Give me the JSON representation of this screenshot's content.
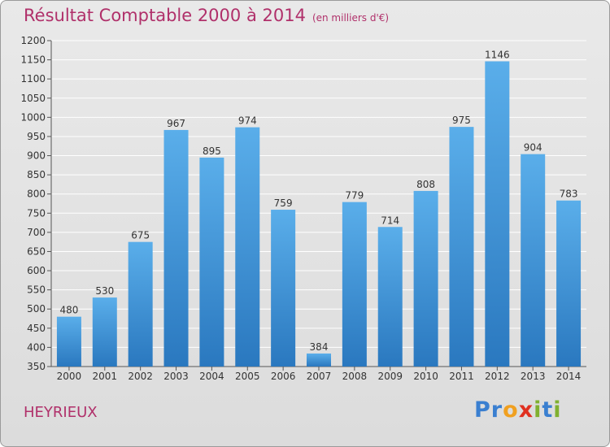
{
  "title": "Résultat Comptable 2000 à 2014",
  "subtitle": "(en milliers d'€)",
  "town": "HEYRIEUX",
  "logo": {
    "text": "Proxiti",
    "letters": [
      "P",
      "r",
      "o",
      "x",
      "i",
      "t",
      "i"
    ],
    "colors": [
      "#3a7fd0",
      "#3a7fd0",
      "#f0a020",
      "#e03020",
      "#80b030",
      "#3a7fd0",
      "#80b030"
    ]
  },
  "bar_color": "#3f92d8",
  "chart_data": {
    "type": "bar",
    "title": "Résultat Comptable 2000 à 2014",
    "subtitle": "(en milliers d'€)",
    "categories": [
      "2000",
      "2001",
      "2002",
      "2003",
      "2004",
      "2005",
      "2006",
      "2007",
      "2008",
      "2009",
      "2010",
      "2011",
      "2012",
      "2013",
      "2014"
    ],
    "values": [
      480,
      530,
      675,
      967,
      895,
      974,
      759,
      384,
      779,
      714,
      808,
      975,
      1146,
      904,
      783
    ],
    "ylim": [
      350,
      1200
    ],
    "yticks": [
      350,
      400,
      450,
      500,
      550,
      600,
      650,
      700,
      750,
      800,
      850,
      900,
      950,
      1000,
      1050,
      1100,
      1150,
      1200
    ],
    "xlabel": "",
    "ylabel": "",
    "grid": true,
    "data_labels": true
  }
}
